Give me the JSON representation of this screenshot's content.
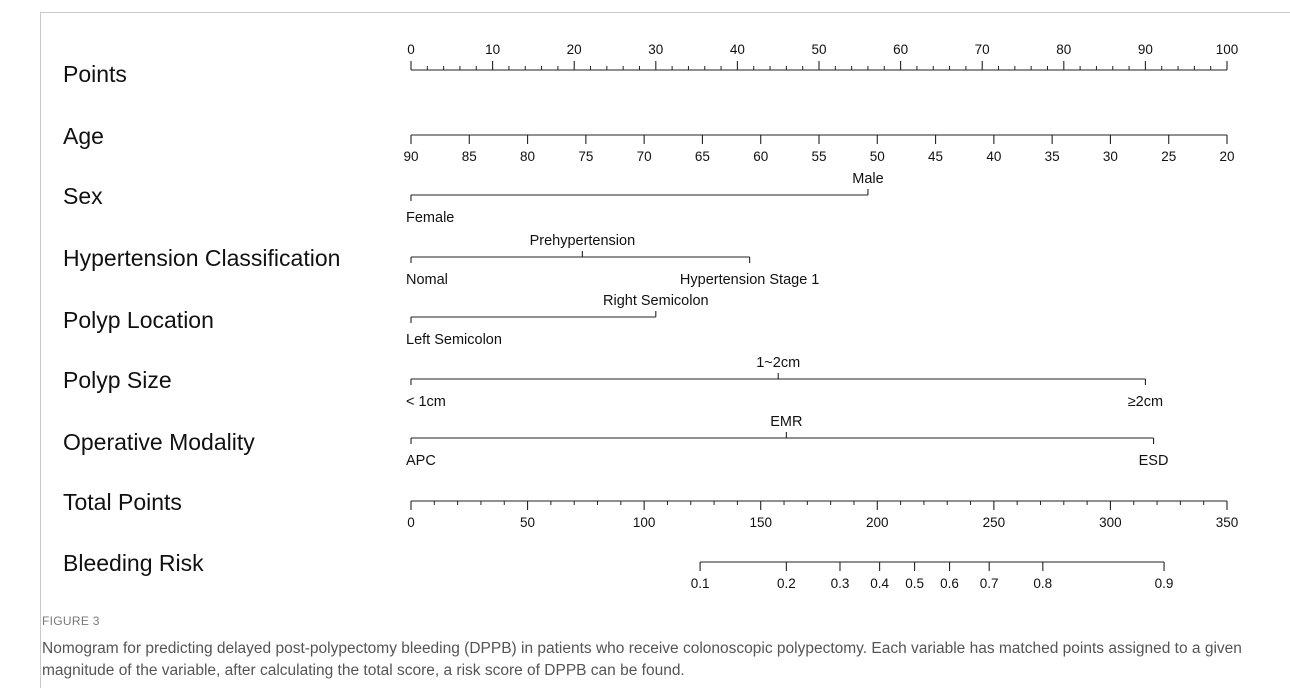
{
  "figure": {
    "label": "FIGURE 3",
    "caption": "Nomogram for predicting delayed post-polypectomy bleeding (DPPB) in patients who receive colonoscopic polypectomy. Each variable has matched points assigned to a given magnitude of the variable, after calculating the total score, a risk score of DPPB can be found."
  },
  "chart_data": {
    "type": "nomogram",
    "title": "",
    "axis_range": [
      0,
      100
    ],
    "rows": [
      {
        "name": "Points",
        "scale": [
          0,
          100
        ],
        "ticks": [
          {
            "value": 0,
            "label": "0"
          },
          {
            "value": 10,
            "label": "10"
          },
          {
            "value": 20,
            "label": "20"
          },
          {
            "value": 30,
            "label": "30"
          },
          {
            "value": 40,
            "label": "40"
          },
          {
            "value": 50,
            "label": "50"
          },
          {
            "value": 60,
            "label": "60"
          },
          {
            "value": 70,
            "label": "70"
          },
          {
            "value": 80,
            "label": "80"
          },
          {
            "value": 90,
            "label": "90"
          },
          {
            "value": 100,
            "label": "100"
          }
        ],
        "minor_step": 2,
        "labels_above": true
      },
      {
        "name": "Age",
        "scale": [
          90,
          20
        ],
        "ticks": [
          {
            "value": 90,
            "label": "90"
          },
          {
            "value": 85,
            "label": "85"
          },
          {
            "value": 80,
            "label": "80"
          },
          {
            "value": 75,
            "label": "75"
          },
          {
            "value": 70,
            "label": "70"
          },
          {
            "value": 65,
            "label": "65"
          },
          {
            "value": 60,
            "label": "60"
          },
          {
            "value": 55,
            "label": "55"
          },
          {
            "value": 50,
            "label": "50"
          },
          {
            "value": 45,
            "label": "45"
          },
          {
            "value": 40,
            "label": "40"
          },
          {
            "value": 35,
            "label": "35"
          },
          {
            "value": 30,
            "label": "30"
          },
          {
            "value": 25,
            "label": "25"
          },
          {
            "value": 20,
            "label": "20"
          }
        ]
      },
      {
        "name": "Sex",
        "points": [
          {
            "label": "Female",
            "value": 0,
            "pos": "below"
          },
          {
            "label": "Male",
            "value": 56,
            "pos": "above"
          }
        ]
      },
      {
        "name": "Hypertension Classification",
        "points": [
          {
            "label": "Nomal",
            "value": 0,
            "pos": "below"
          },
          {
            "label": "Prehypertension",
            "value": 21,
            "pos": "above"
          },
          {
            "label": "Hypertension Stage 1",
            "value": 41.5,
            "pos": "below"
          }
        ]
      },
      {
        "name": "Polyp Location",
        "points": [
          {
            "label": "Left Semicolon",
            "value": 0,
            "pos": "below"
          },
          {
            "label": "Right Semicolon",
            "value": 30,
            "pos": "above"
          }
        ]
      },
      {
        "name": "Polyp Size",
        "points": [
          {
            "label": "< 1cm",
            "value": 0,
            "pos": "below"
          },
          {
            "label": "1~2cm",
            "value": 45,
            "pos": "above"
          },
          {
            "label": "≥2cm",
            "value": 90,
            "pos": "below"
          }
        ]
      },
      {
        "name": "Operative Modality",
        "points": [
          {
            "label": "APC",
            "value": 0,
            "pos": "below"
          },
          {
            "label": "EMR",
            "value": 46,
            "pos": "above"
          },
          {
            "label": "ESD",
            "value": 91,
            "pos": "below"
          }
        ]
      },
      {
        "name": "Total Points",
        "scale": [
          0,
          350
        ],
        "ticks": [
          {
            "value": 0,
            "label": "0"
          },
          {
            "value": 50,
            "label": "50"
          },
          {
            "value": 100,
            "label": "100"
          },
          {
            "value": 150,
            "label": "150"
          },
          {
            "value": 200,
            "label": "200"
          },
          {
            "value": 250,
            "label": "250"
          },
          {
            "value": 300,
            "label": "300"
          },
          {
            "value": 350,
            "label": "350"
          }
        ],
        "minor_step": 10
      },
      {
        "name": "Bleeding Risk",
        "ticks": [
          {
            "value": 0.1,
            "label": "0.1",
            "total": 124
          },
          {
            "value": 0.2,
            "label": "0.2",
            "total": 161
          },
          {
            "value": 0.3,
            "label": "0.3",
            "total": 184
          },
          {
            "value": 0.4,
            "label": "0.4",
            "total": 201
          },
          {
            "value": 0.5,
            "label": "0.5",
            "total": 216
          },
          {
            "value": 0.6,
            "label": "0.6",
            "total": 231
          },
          {
            "value": 0.7,
            "label": "0.7",
            "total": 248
          },
          {
            "value": 0.8,
            "label": "0.8",
            "total": 271
          },
          {
            "value": 0.9,
            "label": "0.9",
            "total": 323
          }
        ]
      }
    ]
  }
}
